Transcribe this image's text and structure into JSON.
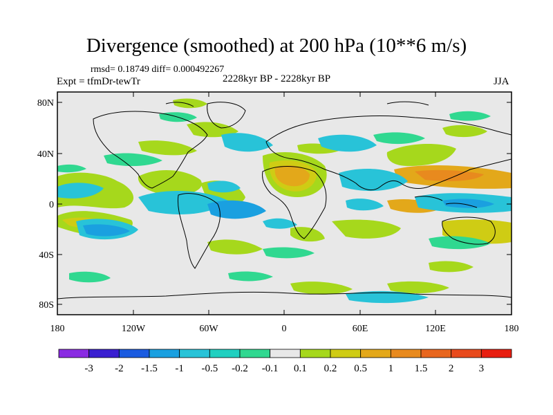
{
  "header": {
    "title": "Divergence (smoothed) at 200 hPa (10**6 m/s)",
    "stats": "rmsd= 0.18749 diff= 0.000492267",
    "experiment": "Expt = tfmDr-tewTr",
    "period": "2228kyr BP - 2228kyr BP",
    "season": "JJA"
  },
  "axes": {
    "y_ticks": [
      "80N",
      "40N",
      "0",
      "40S",
      "80S"
    ],
    "x_ticks": [
      "180",
      "120W",
      "60W",
      "0",
      "60E",
      "120E",
      "180"
    ]
  },
  "colorbar": {
    "labels": [
      "-3",
      "-2",
      "-1.5",
      "-1",
      "-0.5",
      "-0.2",
      "-0.1",
      "0.1",
      "0.2",
      "0.5",
      "1",
      "1.5",
      "2",
      "3"
    ],
    "colors": [
      "#8a2be2",
      "#3a1fd1",
      "#1a5be0",
      "#1aa0e0",
      "#28c3d8",
      "#20d0c0",
      "#30d890",
      "#e8e8e8",
      "#a6d81c",
      "#cfcc14",
      "#e3a81a",
      "#e88a1e",
      "#e8661e",
      "#e84a1c",
      "#e81e10"
    ]
  },
  "colors": {
    "land_neutral": "#e8e8e8",
    "coast": "#000000"
  }
}
